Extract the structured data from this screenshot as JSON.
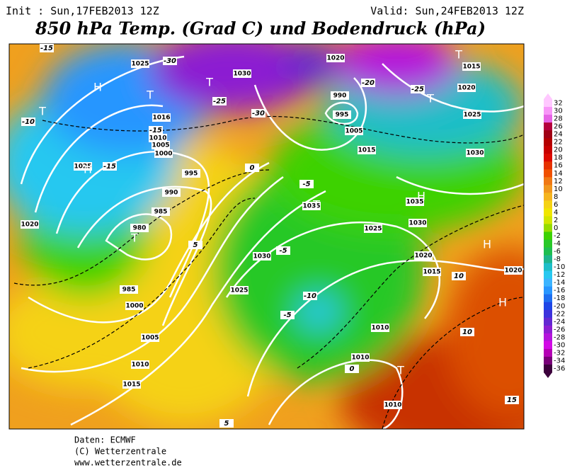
{
  "header": {
    "init": "Init : Sun,17FEB2013 12Z",
    "valid": "Valid: Sun,24FEB2013 12Z",
    "title": "850 hPa Temp. (Grad C) und Bodendruck (hPa)"
  },
  "colorbar": {
    "labels": [
      32,
      30,
      28,
      26,
      24,
      22,
      20,
      18,
      16,
      14,
      12,
      10,
      8,
      6,
      4,
      2,
      0,
      -2,
      -4,
      -6,
      -8,
      -10,
      -12,
      -14,
      -16,
      -18,
      -20,
      -22,
      -24,
      -26,
      -28,
      -30,
      -32,
      -34,
      -36
    ],
    "colors": [
      "#ffc8ff",
      "#f896f8",
      "#e664e6",
      "#b4003c",
      "#a00014",
      "#b40000",
      "#c80000",
      "#dc0a00",
      "#e63200",
      "#f05000",
      "#f07814",
      "#f0961e",
      "#f5b41e",
      "#f5d214",
      "#f0e600",
      "#d2e600",
      "#96dc00",
      "#3cd200",
      "#28c828",
      "#1ebe50",
      "#1eb48c",
      "#1ebec8",
      "#28c8f0",
      "#3cb4ff",
      "#2896ff",
      "#1e6ef0",
      "#1e46e6",
      "#3c32dc",
      "#6428d2",
      "#8c1ed2",
      "#b414dc",
      "#d20ae6",
      "#b400b4",
      "#780078",
      "#3c003c"
    ]
  },
  "map": {
    "labels": [
      {
        "text": "1025",
        "kind": "isobar"
      },
      {
        "text": "1030",
        "kind": "isobar"
      },
      {
        "text": "1020",
        "kind": "isobar"
      },
      {
        "text": "990",
        "kind": "isobar"
      },
      {
        "text": "995",
        "kind": "isobar"
      },
      {
        "text": "1005",
        "kind": "isobar"
      },
      {
        "text": "1015",
        "kind": "isobar"
      },
      {
        "text": "1016",
        "kind": "isobar"
      },
      {
        "text": "1010",
        "kind": "isobar"
      },
      {
        "text": "1005",
        "kind": "isobar"
      },
      {
        "text": "1000",
        "kind": "isobar"
      },
      {
        "text": "995",
        "kind": "isobar"
      },
      {
        "text": "990",
        "kind": "isobar"
      },
      {
        "text": "985",
        "kind": "isobar"
      },
      {
        "text": "980",
        "kind": "isobar"
      },
      {
        "text": "985",
        "kind": "isobar"
      },
      {
        "text": "1000",
        "kind": "isobar"
      },
      {
        "text": "1005",
        "kind": "isobar"
      },
      {
        "text": "1010",
        "kind": "isobar"
      },
      {
        "text": "1015",
        "kind": "isobar"
      },
      {
        "text": "1025",
        "kind": "isobar"
      },
      {
        "text": "1030",
        "kind": "isobar"
      },
      {
        "text": "1035",
        "kind": "isobar"
      },
      {
        "text": "1025",
        "kind": "isobar"
      },
      {
        "text": "1030",
        "kind": "isobar"
      },
      {
        "text": "1020",
        "kind": "isobar"
      },
      {
        "text": "1015",
        "kind": "isobar"
      },
      {
        "text": "1010",
        "kind": "isobar"
      },
      {
        "text": "1010",
        "kind": "isobar"
      },
      {
        "text": "1010",
        "kind": "isobar"
      },
      {
        "text": "1020",
        "kind": "isobar"
      },
      {
        "text": "1025",
        "kind": "isobar"
      },
      {
        "text": "1020",
        "kind": "isobar"
      },
      {
        "text": "1025",
        "kind": "isobar"
      },
      {
        "text": "1030",
        "kind": "isobar"
      },
      {
        "text": "1015",
        "kind": "isobar"
      },
      {
        "text": "1035",
        "kind": "isobar"
      },
      {
        "text": "1020",
        "kind": "isobar"
      },
      {
        "text": "-15",
        "kind": "temp"
      },
      {
        "text": "-30",
        "kind": "temp"
      },
      {
        "text": "-25",
        "kind": "temp"
      },
      {
        "text": "-20",
        "kind": "temp"
      },
      {
        "text": "-10",
        "kind": "temp"
      },
      {
        "text": "-15",
        "kind": "temp"
      },
      {
        "text": "-15",
        "kind": "temp"
      },
      {
        "text": "-5",
        "kind": "temp"
      },
      {
        "text": "0",
        "kind": "temp"
      },
      {
        "text": "5",
        "kind": "temp"
      },
      {
        "text": "-5",
        "kind": "temp"
      },
      {
        "text": "5",
        "kind": "temp"
      },
      {
        "text": "-10",
        "kind": "temp"
      },
      {
        "text": "-5",
        "kind": "temp"
      },
      {
        "text": "0",
        "kind": "temp"
      },
      {
        "text": "10",
        "kind": "temp"
      },
      {
        "text": "10",
        "kind": "temp"
      },
      {
        "text": "15",
        "kind": "temp"
      },
      {
        "text": "-30",
        "kind": "temp"
      },
      {
        "text": "-25",
        "kind": "temp"
      },
      {
        "text": "H",
        "kind": "center"
      },
      {
        "text": "T",
        "kind": "center"
      },
      {
        "text": "T",
        "kind": "center"
      },
      {
        "text": "T",
        "kind": "center"
      },
      {
        "text": "H",
        "kind": "center"
      },
      {
        "text": "T",
        "kind": "center"
      },
      {
        "text": "H",
        "kind": "center"
      },
      {
        "text": "T",
        "kind": "center"
      },
      {
        "text": "H",
        "kind": "center"
      },
      {
        "text": "T",
        "kind": "center"
      },
      {
        "text": "T",
        "kind": "center"
      },
      {
        "text": "H",
        "kind": "center"
      },
      {
        "text": "T",
        "kind": "center"
      }
    ]
  },
  "footer": {
    "lines": [
      "Daten: ECMWF",
      "(C) Wetterzentrale",
      "www.wetterzentrale.de"
    ]
  }
}
